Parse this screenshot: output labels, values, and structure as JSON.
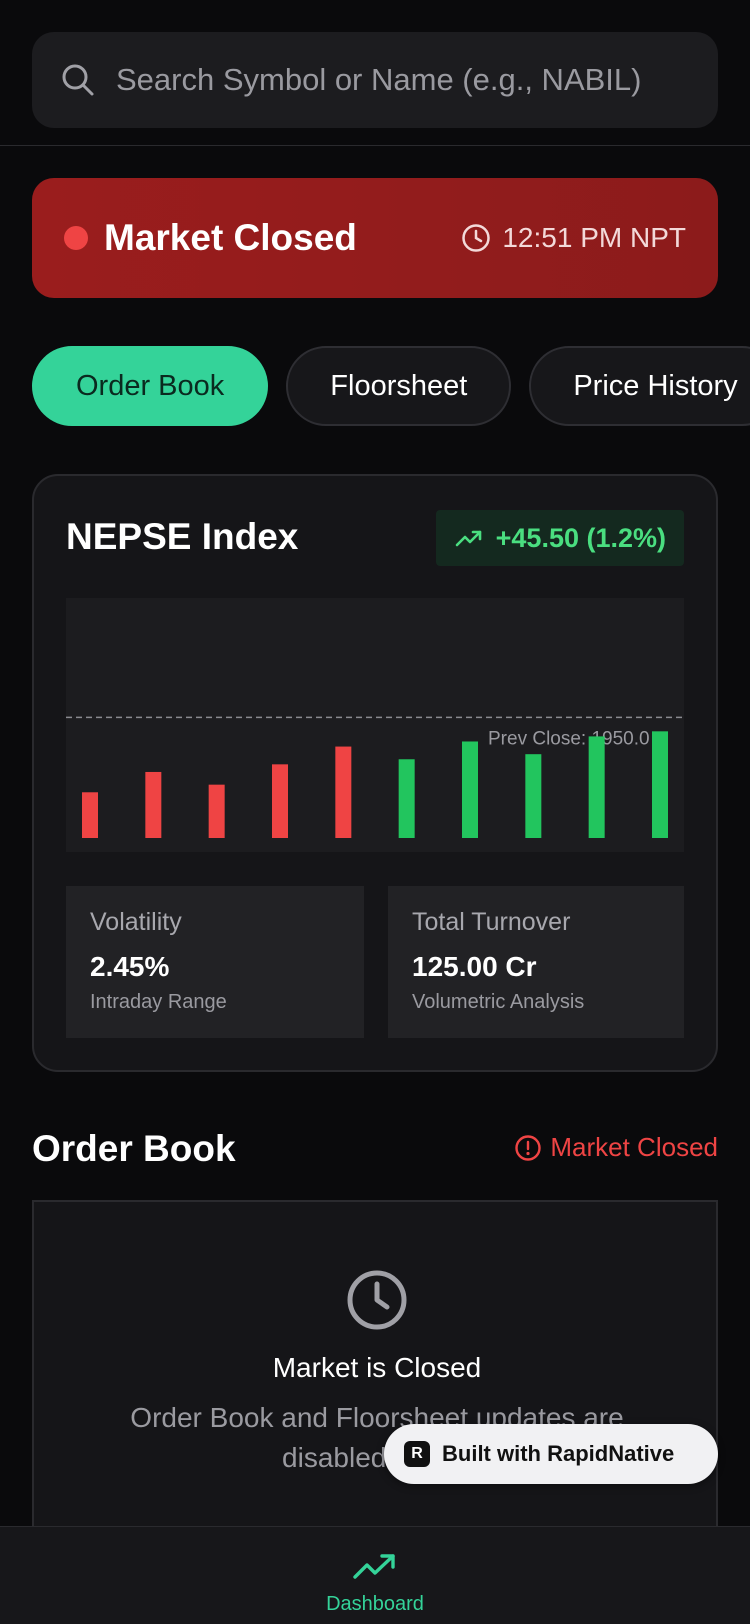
{
  "search": {
    "placeholder": "Search Symbol or Name (e.g., NABIL)",
    "icon": "search-icon"
  },
  "status_banner": {
    "title": "Market Closed",
    "time": "12:51 PM NPT",
    "color": "#9a1d1d",
    "dot_color": "#ef4444"
  },
  "tabs": [
    {
      "label": "Order Book",
      "active": true
    },
    {
      "label": "Floorsheet",
      "active": false
    },
    {
      "label": "Price History",
      "active": false
    }
  ],
  "index_card": {
    "title": "NEPSE Index",
    "change": "+45.50 (1.2%)",
    "change_color": "#4ade80"
  },
  "chart_data": {
    "type": "bar",
    "reference_line": {
      "label": "Prev Close: 1950.0",
      "value": 1950.0
    },
    "series": [
      {
        "values": [
          {
            "height": 0.18,
            "color": "#ef4444"
          },
          {
            "height": 0.26,
            "color": "#ef4444"
          },
          {
            "height": 0.21,
            "color": "#ef4444"
          },
          {
            "height": 0.29,
            "color": "#ef4444"
          },
          {
            "height": 0.36,
            "color": "#ef4444"
          },
          {
            "height": 0.31,
            "color": "#22c55e"
          },
          {
            "height": 0.38,
            "color": "#22c55e"
          },
          {
            "height": 0.33,
            "color": "#22c55e"
          },
          {
            "height": 0.4,
            "color": "#22c55e"
          },
          {
            "height": 0.42,
            "color": "#22c55e"
          }
        ]
      }
    ],
    "reference_level": 0.53
  },
  "stats": {
    "volatility": {
      "label": "Volatility",
      "value": "2.45%",
      "sub": "Intraday Range"
    },
    "turnover": {
      "label": "Total Turnover",
      "value": "125.00 Cr",
      "sub": "Volumetric Analysis"
    }
  },
  "order_book": {
    "title": "Order Book",
    "status": "Market Closed",
    "closed_title": "Market is Closed",
    "closed_desc": "Order Book and Floorsheet updates are disabled during"
  },
  "badge": {
    "text": "Built with RapidNative",
    "logo": "R"
  },
  "nav": {
    "dashboard_label": "Dashboard"
  }
}
